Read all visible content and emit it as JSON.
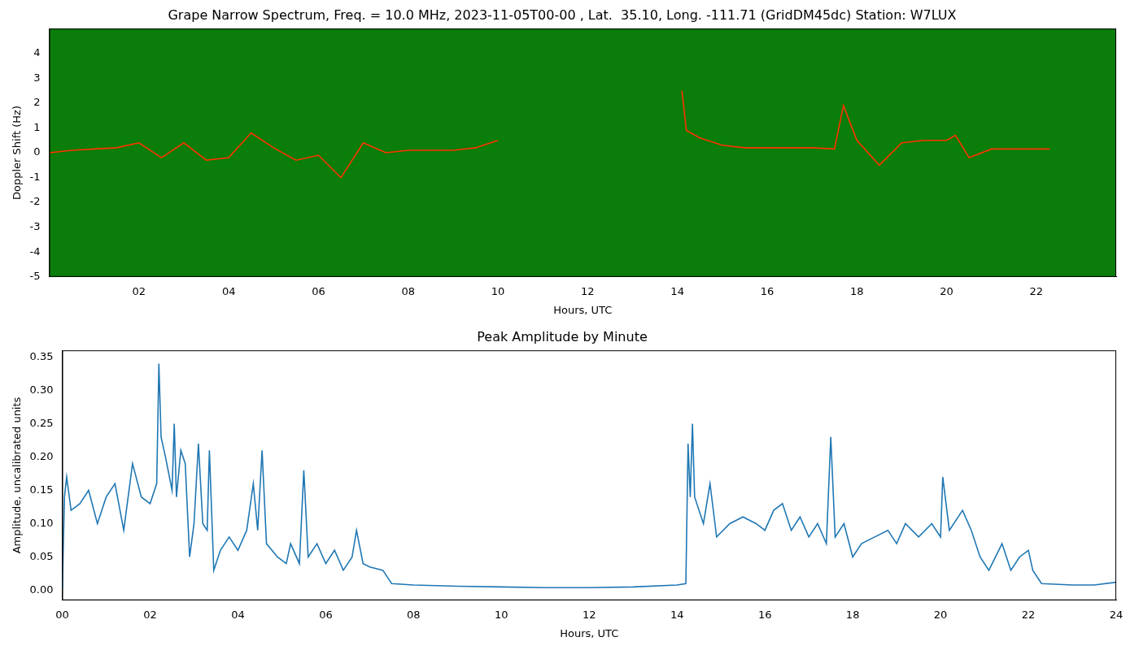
{
  "chart_data": [
    {
      "type": "line",
      "title": "Grape Narrow Spectrum, Freq. = 10.0 MHz, 2023-11-05T00-00 , Lat.  35.10, Long. -111.71 (GridDM45dc) Station: W7LUX",
      "x_label": "Hours, UTC",
      "y_label": "Doppler Shift (Hz)",
      "x": [
        0,
        0.5,
        1,
        1.5,
        2,
        2.5,
        3,
        3.5,
        4,
        4.5,
        5,
        5.5,
        6,
        6.5,
        7,
        7.5,
        8,
        8.5,
        9,
        9.5,
        10,
        12,
        14.1,
        14.2,
        14.5,
        15,
        15.5,
        16,
        16.5,
        17,
        17.5,
        17.7,
        18,
        18.5,
        19,
        19.5,
        20,
        20.2,
        20.5,
        21,
        22,
        22.3
      ],
      "values": [
        0,
        0.1,
        0.15,
        0.2,
        0.4,
        -0.2,
        0.4,
        -0.3,
        -0.2,
        0.8,
        0.2,
        -0.3,
        -0.1,
        -1.0,
        0.4,
        0.0,
        0.1,
        0.1,
        0.1,
        0.2,
        0.5,
        null,
        2.5,
        0.9,
        0.6,
        0.3,
        0.2,
        0.2,
        0.2,
        0.2,
        0.15,
        1.9,
        0.5,
        -0.5,
        0.4,
        0.5,
        0.5,
        0.7,
        -0.2,
        0.15,
        0.15,
        0.15
      ],
      "color": "#ff3300",
      "xlim": [
        0,
        23.78
      ],
      "xticks": [
        {
          "value": 2,
          "label": "02"
        },
        {
          "value": 4,
          "label": "04"
        },
        {
          "value": 6,
          "label": "06"
        },
        {
          "value": 8,
          "label": "08"
        },
        10,
        12,
        14,
        16,
        18,
        20,
        22
      ],
      "ylim": [
        -5,
        5
      ],
      "yticks": [
        -5,
        -4,
        -3,
        -2,
        -1,
        0,
        1,
        2,
        3,
        4
      ],
      "grid": false
    },
    {
      "type": "line",
      "title": "Peak Amplitude by Minute",
      "x_label": "Hours, UTC",
      "y_label": "Amplitude, uncalibrated units",
      "x": [
        0.0,
        0.05,
        0.1,
        0.2,
        0.4,
        0.6,
        0.8,
        1.0,
        1.2,
        1.4,
        1.6,
        1.8,
        2.0,
        2.15,
        2.2,
        2.25,
        2.35,
        2.5,
        2.55,
        2.6,
        2.7,
        2.8,
        2.9,
        3.0,
        3.1,
        3.2,
        3.3,
        3.35,
        3.45,
        3.6,
        3.8,
        4.0,
        4.2,
        4.35,
        4.45,
        4.55,
        4.65,
        4.9,
        5.1,
        5.2,
        5.4,
        5.5,
        5.6,
        5.8,
        6.0,
        6.2,
        6.4,
        6.6,
        6.7,
        6.85,
        7.0,
        7.3,
        7.5,
        8,
        9,
        10,
        11,
        12,
        13,
        14,
        14.2,
        14.25,
        14.3,
        14.35,
        14.4,
        14.6,
        14.75,
        14.9,
        15.2,
        15.5,
        15.8,
        16.0,
        16.2,
        16.4,
        16.6,
        16.8,
        17.0,
        17.2,
        17.4,
        17.5,
        17.6,
        17.8,
        18.0,
        18.2,
        18.5,
        18.8,
        19.0,
        19.2,
        19.5,
        19.8,
        20.0,
        20.05,
        20.2,
        20.5,
        20.7,
        20.9,
        21.1,
        21.4,
        21.6,
        21.8,
        22.0,
        22.1,
        22.3,
        23,
        23.5,
        24
      ],
      "values": [
        0.0,
        0.14,
        0.17,
        0.12,
        0.13,
        0.15,
        0.1,
        0.14,
        0.16,
        0.09,
        0.19,
        0.14,
        0.13,
        0.16,
        0.34,
        0.23,
        0.2,
        0.15,
        0.25,
        0.14,
        0.21,
        0.19,
        0.05,
        0.1,
        0.22,
        0.1,
        0.09,
        0.21,
        0.03,
        0.06,
        0.08,
        0.06,
        0.09,
        0.16,
        0.09,
        0.21,
        0.07,
        0.05,
        0.04,
        0.07,
        0.04,
        0.18,
        0.05,
        0.07,
        0.04,
        0.06,
        0.03,
        0.05,
        0.09,
        0.04,
        0.035,
        0.03,
        0.01,
        0.008,
        0.006,
        0.005,
        0.004,
        0.004,
        0.005,
        0.008,
        0.01,
        0.22,
        0.14,
        0.25,
        0.14,
        0.1,
        0.16,
        0.08,
        0.1,
        0.11,
        0.1,
        0.09,
        0.12,
        0.13,
        0.09,
        0.11,
        0.08,
        0.1,
        0.07,
        0.23,
        0.08,
        0.1,
        0.05,
        0.07,
        0.08,
        0.09,
        0.07,
        0.1,
        0.08,
        0.1,
        0.08,
        0.17,
        0.09,
        0.12,
        0.09,
        0.05,
        0.03,
        0.07,
        0.03,
        0.05,
        0.06,
        0.03,
        0.01,
        0.008,
        0.008,
        0.012
      ],
      "color": "#1f77b4",
      "xlim": [
        0,
        24
      ],
      "xticks": [
        {
          "value": 0,
          "label": "00"
        },
        {
          "value": 2,
          "label": "02"
        },
        {
          "value": 4,
          "label": "04"
        },
        {
          "value": 6,
          "label": "06"
        },
        {
          "value": 8,
          "label": "08"
        },
        10,
        12,
        14,
        16,
        18,
        20,
        22,
        24
      ],
      "ylim": [
        -0.015,
        0.36
      ],
      "yticks": [
        {
          "value": 0,
          "label": "0.00"
        },
        0.05,
        {
          "value": 0.1,
          "label": "0.10"
        },
        0.15,
        {
          "value": 0.2,
          "label": "0.20"
        },
        0.25,
        {
          "value": 0.3,
          "label": "0.30"
        },
        0.35
      ],
      "grid": false
    }
  ]
}
